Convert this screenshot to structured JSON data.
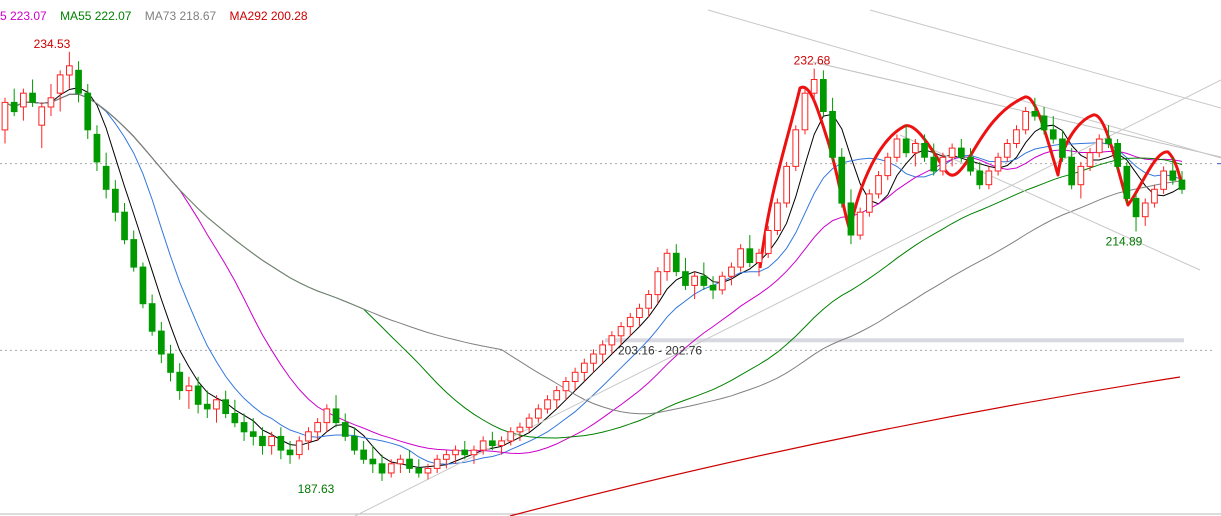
{
  "chart_data": {
    "type": "candlestick",
    "ylim": [
      185,
      238
    ],
    "legend": [
      {
        "label": "5 223.07",
        "color": "#cc00cc"
      },
      {
        "label": "MA55 222.07",
        "color": "#008000"
      },
      {
        "label": "MA73 218.67",
        "color": "#808080"
      },
      {
        "label": "MA292 200.28",
        "color": "#cc0000"
      }
    ],
    "annotations": {
      "high_left": {
        "text": "234.53",
        "value": 234.53
      },
      "high_mid": {
        "text": "232.68",
        "value": 232.68
      },
      "low_left": {
        "text": "187.63",
        "value": 187.63
      },
      "low_right": {
        "text": "214.89",
        "value": 214.89
      },
      "range": {
        "text": "203.16 - 202.76",
        "value": 203.0
      }
    },
    "reference_lines": [
      222.3,
      201.9,
      203.0
    ],
    "candles": [
      [
        226.0,
        229.5,
        224.5,
        229.0
      ],
      [
        229.0,
        230.5,
        227.5,
        228.0
      ],
      [
        228.5,
        230.5,
        227.0,
        230.0
      ],
      [
        230.0,
        231.5,
        228.5,
        229.0
      ],
      [
        226.5,
        229.0,
        224.0,
        228.5
      ],
      [
        228.5,
        231.0,
        227.5,
        229.5
      ],
      [
        230.0,
        232.5,
        228.0,
        232.0
      ],
      [
        232.0,
        234.53,
        230.5,
        233.0
      ],
      [
        232.5,
        233.5,
        229.0,
        230.0
      ],
      [
        230.0,
        231.0,
        225.0,
        226.0
      ],
      [
        225.5,
        226.5,
        221.5,
        222.5
      ],
      [
        222.0,
        223.5,
        218.5,
        219.5
      ],
      [
        219.5,
        220.5,
        216.0,
        217.0
      ],
      [
        217.0,
        218.0,
        213.5,
        214.0
      ],
      [
        214.0,
        215.0,
        210.5,
        211.0
      ],
      [
        211.0,
        211.5,
        206.5,
        207.0
      ],
      [
        207.0,
        208.0,
        203.5,
        204.0
      ],
      [
        204.0,
        205.0,
        200.5,
        201.5
      ],
      [
        201.5,
        202.5,
        198.5,
        199.5
      ],
      [
        199.5,
        200.5,
        196.5,
        197.5
      ],
      [
        197.5,
        199.0,
        195.5,
        198.0
      ],
      [
        198.0,
        199.0,
        195.0,
        196.0
      ],
      [
        196.0,
        197.5,
        194.5,
        195.5
      ],
      [
        195.5,
        197.0,
        194.0,
        196.5
      ],
      [
        196.5,
        197.5,
        194.5,
        195.0
      ],
      [
        195.0,
        196.5,
        193.5,
        194.0
      ],
      [
        194.0,
        195.0,
        192.0,
        193.0
      ],
      [
        193.0,
        194.5,
        191.5,
        192.5
      ],
      [
        192.5,
        193.5,
        190.5,
        191.5
      ],
      [
        191.5,
        193.0,
        190.5,
        192.5
      ],
      [
        192.5,
        193.5,
        190.0,
        191.0
      ],
      [
        191.0,
        192.0,
        189.5,
        190.5
      ],
      [
        190.5,
        192.5,
        190.0,
        192.0
      ],
      [
        192.0,
        193.5,
        191.0,
        193.0
      ],
      [
        193.0,
        194.5,
        192.0,
        194.0
      ],
      [
        194.0,
        196.0,
        193.0,
        195.5
      ],
      [
        195.5,
        197.0,
        193.5,
        194.0
      ],
      [
        194.0,
        195.0,
        192.0,
        192.5
      ],
      [
        192.5,
        193.5,
        190.5,
        191.0
      ],
      [
        191.0,
        192.0,
        189.5,
        190.0
      ],
      [
        190.0,
        191.5,
        188.5,
        189.5
      ],
      [
        189.5,
        190.5,
        187.63,
        188.5
      ],
      [
        188.5,
        190.0,
        188.0,
        189.5
      ],
      [
        189.5,
        190.5,
        188.5,
        190.0
      ],
      [
        190.0,
        191.0,
        188.5,
        189.0
      ],
      [
        189.0,
        190.0,
        188.0,
        188.5
      ],
      [
        188.5,
        189.5,
        187.8,
        189.0
      ],
      [
        189.0,
        190.5,
        188.5,
        190.0
      ],
      [
        190.0,
        191.0,
        189.0,
        190.5
      ],
      [
        190.5,
        191.5,
        189.5,
        191.0
      ],
      [
        191.0,
        192.0,
        190.0,
        190.5
      ],
      [
        190.5,
        191.5,
        189.5,
        191.0
      ],
      [
        191.0,
        192.5,
        190.5,
        192.0
      ],
      [
        192.0,
        193.0,
        191.0,
        191.5
      ],
      [
        191.5,
        192.5,
        190.5,
        192.0
      ],
      [
        192.0,
        193.5,
        191.5,
        193.0
      ],
      [
        193.0,
        194.0,
        192.0,
        193.5
      ],
      [
        193.5,
        195.0,
        193.0,
        194.5
      ],
      [
        194.5,
        196.0,
        194.0,
        195.5
      ],
      [
        195.5,
        197.0,
        195.0,
        196.5
      ],
      [
        196.5,
        198.0,
        195.5,
        197.5
      ],
      [
        197.5,
        199.0,
        196.5,
        198.5
      ],
      [
        198.5,
        200.0,
        197.5,
        199.5
      ],
      [
        199.5,
        201.0,
        198.5,
        200.5
      ],
      [
        200.5,
        202.0,
        199.5,
        201.5
      ],
      [
        201.5,
        203.0,
        200.5,
        202.5
      ],
      [
        202.5,
        204.0,
        201.5,
        203.5
      ],
      [
        203.5,
        205.0,
        202.5,
        204.5
      ],
      [
        204.5,
        206.0,
        203.5,
        205.5
      ],
      [
        205.5,
        207.0,
        204.5,
        206.5
      ],
      [
        206.5,
        208.5,
        205.5,
        208.0
      ],
      [
        208.0,
        211.0,
        207.0,
        210.5
      ],
      [
        210.5,
        213.0,
        209.5,
        212.5
      ],
      [
        212.5,
        213.5,
        210.0,
        210.5
      ],
      [
        210.5,
        212.0,
        208.5,
        209.0
      ],
      [
        209.0,
        210.5,
        207.5,
        210.0
      ],
      [
        210.0,
        211.5,
        208.5,
        209.0
      ],
      [
        209.0,
        210.0,
        207.5,
        208.5
      ],
      [
        208.5,
        210.5,
        208.0,
        210.0
      ],
      [
        210.0,
        211.5,
        209.0,
        211.0
      ],
      [
        211.0,
        213.5,
        210.5,
        213.0
      ],
      [
        213.0,
        214.5,
        211.0,
        211.5
      ],
      [
        211.5,
        213.0,
        210.0,
        212.5
      ],
      [
        212.5,
        215.5,
        212.0,
        215.0
      ],
      [
        215.0,
        218.5,
        214.5,
        218.0
      ],
      [
        218.0,
        222.5,
        217.5,
        222.0
      ],
      [
        222.0,
        226.5,
        221.5,
        226.0
      ],
      [
        226.0,
        230.5,
        225.5,
        230.0
      ],
      [
        230.0,
        232.68,
        229.0,
        231.5
      ],
      [
        231.5,
        232.5,
        227.5,
        228.0
      ],
      [
        228.0,
        229.5,
        222.5,
        223.0
      ],
      [
        223.0,
        224.0,
        217.5,
        218.0
      ],
      [
        218.0,
        219.5,
        213.5,
        214.5
      ],
      [
        214.5,
        217.5,
        214.0,
        217.0
      ],
      [
        217.0,
        219.5,
        216.5,
        219.0
      ],
      [
        219.0,
        221.5,
        218.5,
        221.0
      ],
      [
        221.0,
        223.5,
        220.5,
        223.0
      ],
      [
        223.0,
        225.5,
        222.5,
        225.0
      ],
      [
        225.0,
        226.5,
        223.0,
        223.5
      ],
      [
        223.5,
        225.0,
        222.0,
        224.5
      ],
      [
        224.5,
        225.5,
        222.5,
        223.0
      ],
      [
        223.0,
        224.5,
        221.0,
        221.5
      ],
      [
        221.5,
        223.5,
        221.0,
        223.0
      ],
      [
        223.0,
        224.5,
        222.0,
        224.0
      ],
      [
        224.0,
        225.0,
        222.5,
        223.0
      ],
      [
        223.0,
        224.0,
        221.0,
        221.5
      ],
      [
        221.5,
        222.5,
        219.5,
        220.0
      ],
      [
        220.0,
        222.0,
        219.5,
        221.5
      ],
      [
        221.5,
        223.5,
        221.0,
        223.0
      ],
      [
        223.0,
        225.0,
        222.5,
        224.5
      ],
      [
        224.5,
        226.5,
        224.0,
        226.0
      ],
      [
        226.0,
        228.5,
        225.5,
        228.0
      ],
      [
        228.0,
        229.5,
        227.0,
        227.5
      ],
      [
        227.5,
        228.5,
        225.5,
        226.0
      ],
      [
        226.0,
        227.5,
        224.5,
        225.0
      ],
      [
        225.0,
        226.0,
        222.5,
        223.0
      ],
      [
        223.0,
        224.0,
        219.5,
        220.0
      ],
      [
        220.0,
        222.5,
        218.5,
        222.0
      ],
      [
        222.0,
        224.0,
        221.5,
        223.5
      ],
      [
        223.5,
        225.5,
        223.0,
        225.0
      ],
      [
        225.0,
        226.5,
        224.0,
        224.5
      ],
      [
        224.5,
        225.0,
        221.5,
        222.0
      ],
      [
        222.0,
        222.5,
        218.0,
        218.5
      ],
      [
        218.5,
        219.0,
        214.89,
        216.5
      ],
      [
        216.5,
        218.5,
        215.5,
        218.0
      ],
      [
        218.0,
        220.0,
        217.5,
        219.5
      ],
      [
        219.5,
        222.0,
        219.0,
        221.5
      ],
      [
        221.5,
        223.0,
        220.0,
        220.5
      ],
      [
        220.5,
        221.5,
        219.0,
        219.5
      ]
    ]
  }
}
